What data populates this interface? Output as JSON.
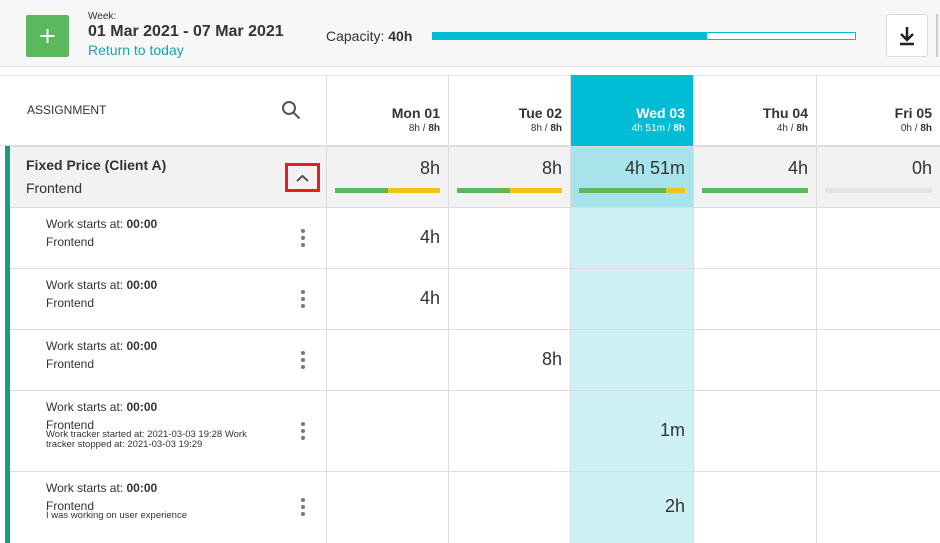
{
  "header": {
    "week_label": "Week:",
    "week_range": "01 Mar 2021 - 07 Mar 2021",
    "return_link": "Return to today",
    "capacity_label": "Capacity:",
    "capacity_value": "40h"
  },
  "table": {
    "assignment_header": "ASSIGNMENT",
    "separator": "/",
    "days": [
      {
        "name": "Mon 01",
        "used": "8h",
        "total": "8h"
      },
      {
        "name": "Tue 02",
        "used": "8h",
        "total": "8h"
      },
      {
        "name": "Wed 03",
        "used": "4h 51m",
        "total": "8h",
        "today": true
      },
      {
        "name": "Thu 04",
        "used": "4h",
        "total": "8h"
      },
      {
        "name": "Fri 05",
        "used": "0h",
        "total": "8h"
      }
    ],
    "group": {
      "title": "Fixed Price (Client A)",
      "subtitle": "Frontend",
      "totals": [
        "8h",
        "8h",
        "4h 51m",
        "4h",
        "0h"
      ]
    },
    "rows": [
      {
        "start_label": "Work starts at:",
        "start_time": "00:00",
        "project": "Frontend",
        "cells": [
          "4h",
          null,
          null,
          null,
          null
        ]
      },
      {
        "start_label": "Work starts at:",
        "start_time": "00:00",
        "project": "Frontend",
        "cells": [
          "4h",
          null,
          null,
          null,
          null
        ]
      },
      {
        "start_label": "Work starts at:",
        "start_time": "00:00",
        "project": "Frontend",
        "cells": [
          null,
          "8h",
          null,
          null,
          null
        ]
      },
      {
        "start_label": "Work starts at:",
        "start_time": "00:00",
        "project": "Frontend",
        "note": "Work tracker started at: 2021-03-03 19:28 Work tracker stopped at: 2021-03-03 19:29",
        "cells": [
          null,
          null,
          "1m",
          null,
          null
        ]
      },
      {
        "start_label": "Work starts at:",
        "start_time": "00:00",
        "project": "Frontend",
        "note": "I was working on user experience",
        "cells": [
          null,
          null,
          "2h",
          null,
          null
        ]
      }
    ]
  }
}
